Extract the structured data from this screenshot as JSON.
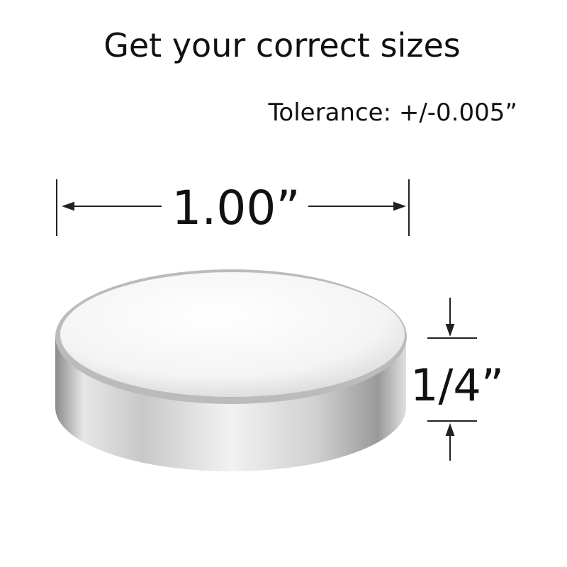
{
  "title": "Get your correct sizes",
  "tolerance": "Tolerance: +/-0.005”",
  "diameter": "1.00”",
  "thickness": "1/4”"
}
